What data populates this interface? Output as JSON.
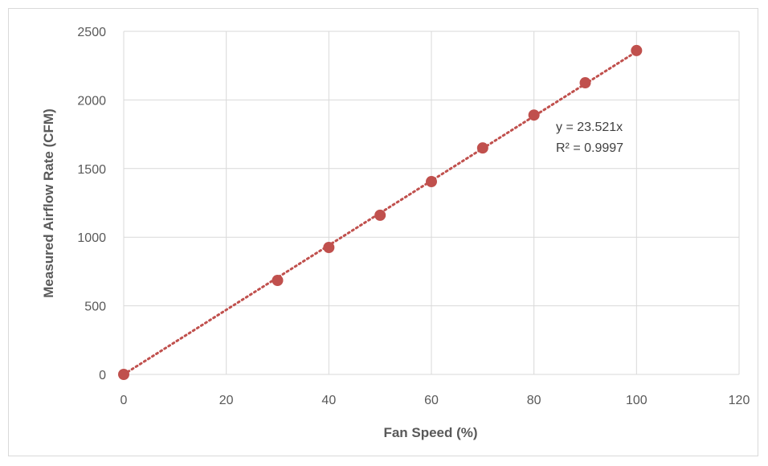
{
  "chart_data": {
    "type": "scatter",
    "title": "",
    "xlabel": "Fan Speed (%)",
    "ylabel": "Measured Airflow Rate (CFM)",
    "xlim": [
      0,
      120
    ],
    "ylim": [
      0,
      2500
    ],
    "xticks": [
      0,
      20,
      40,
      60,
      80,
      100,
      120
    ],
    "yticks": [
      0,
      500,
      1000,
      1500,
      2000,
      2500
    ],
    "grid": true,
    "legend": "none",
    "series": [
      {
        "points": [
          {
            "x": 0,
            "y": 0
          },
          {
            "x": 30,
            "y": 685
          },
          {
            "x": 40,
            "y": 925
          },
          {
            "x": 50,
            "y": 1160
          },
          {
            "x": 60,
            "y": 1405
          },
          {
            "x": 70,
            "y": 1650
          },
          {
            "x": 80,
            "y": 1890
          },
          {
            "x": 90,
            "y": 2125
          },
          {
            "x": 100,
            "y": 2360
          }
        ],
        "marker_color": "#c0504d"
      }
    ],
    "trendline": {
      "type": "linear",
      "slope": 23.521,
      "intercept": 0,
      "x_range": [
        0,
        100
      ],
      "color": "#c0504d",
      "style": "dotted",
      "equation_label": "y = 23.521x",
      "r2_label": "R² = 0.9997"
    },
    "colors": {
      "grid": "#d9d9d9",
      "tick_text": "#595959",
      "marker": "#c0504d"
    }
  }
}
